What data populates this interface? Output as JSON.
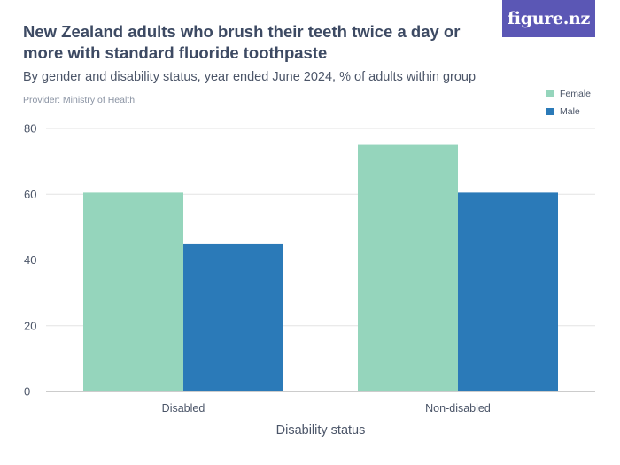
{
  "brand": {
    "logo_text": "figure.nz"
  },
  "colors": {
    "female": "#95d5bc",
    "male": "#2b7ab8",
    "grid": "#e3e3e3",
    "axis": "#9a9a9a"
  },
  "chart_data": {
    "type": "bar",
    "title": "New Zealand adults who brush their teeth twice a day or more with standard fluoride toothpaste",
    "subtitle": "By gender and disability status, year ended June 2024, % of adults within group",
    "provider": "Provider: Ministry of Health",
    "xlabel": "Disability status",
    "ylabel": "",
    "categories": [
      "Disabled",
      "Non-disabled"
    ],
    "series": [
      {
        "name": "Female",
        "values": [
          60.5,
          75
        ]
      },
      {
        "name": "Male",
        "values": [
          45,
          60.5
        ]
      }
    ],
    "ylim": [
      0,
      80
    ],
    "yticks": [
      0,
      20,
      40,
      60,
      80
    ],
    "legend_position": "top-right",
    "grid": true
  }
}
